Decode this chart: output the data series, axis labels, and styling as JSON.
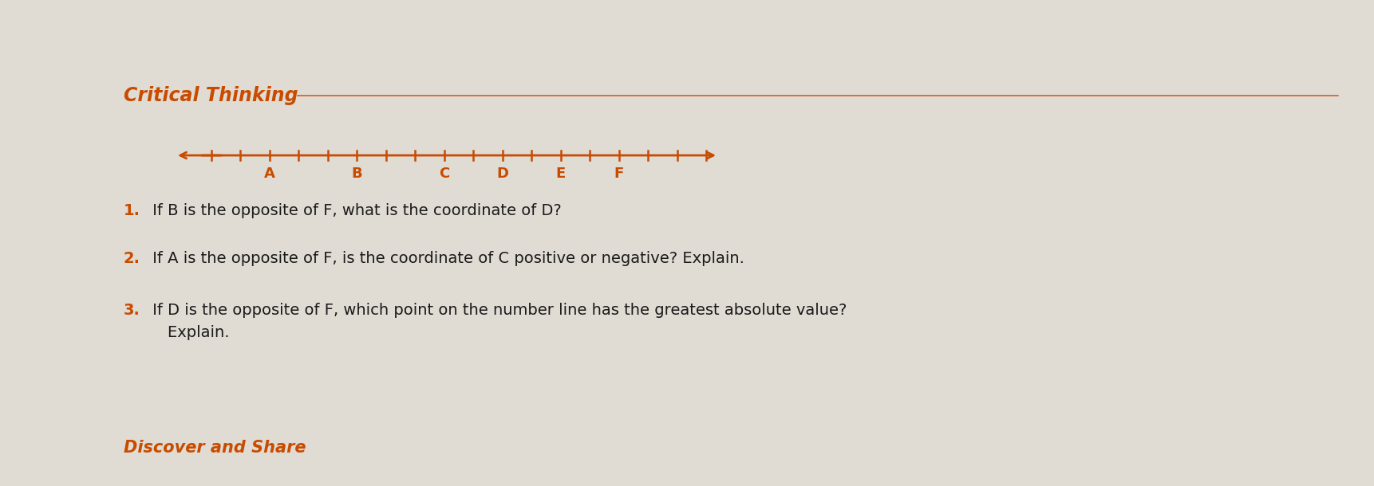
{
  "title": "Critical Thinking",
  "title_color": "#c84b00",
  "title_fontsize": 17,
  "title_style": "italic",
  "title_weight": "bold",
  "bg_color": "#e8e4de",
  "page_color": "#dedad3",
  "number_line_color": "#c84b00",
  "labels": [
    "A",
    "B",
    "C",
    "D",
    "E",
    "F"
  ],
  "label_color": "#c84b00",
  "label_fontsize": 13,
  "tick_count": 18,
  "label_tick_indices": [
    2,
    5,
    8,
    10,
    12,
    14
  ],
  "q1_num": "1.",
  "q1_text": " If B is the opposite of F, what is the coordinate of D?",
  "q2_num": "2.",
  "q2_text": " If A is the opposite of F, is the coordinate of C positive or negative? Explain.",
  "q3_num": "3.",
  "q3_text": " If D is the opposite of F, which point on the number line has the greatest absolute value?",
  "q3_cont": "    Explain.",
  "question_color": "#1a1a1a",
  "question_num_color": "#c84b00",
  "question_fontsize": 14,
  "footer": "Discover and Share",
  "footer_color": "#c84b00",
  "footer_fontsize": 15,
  "footer_style": "italic",
  "footer_weight": "bold"
}
